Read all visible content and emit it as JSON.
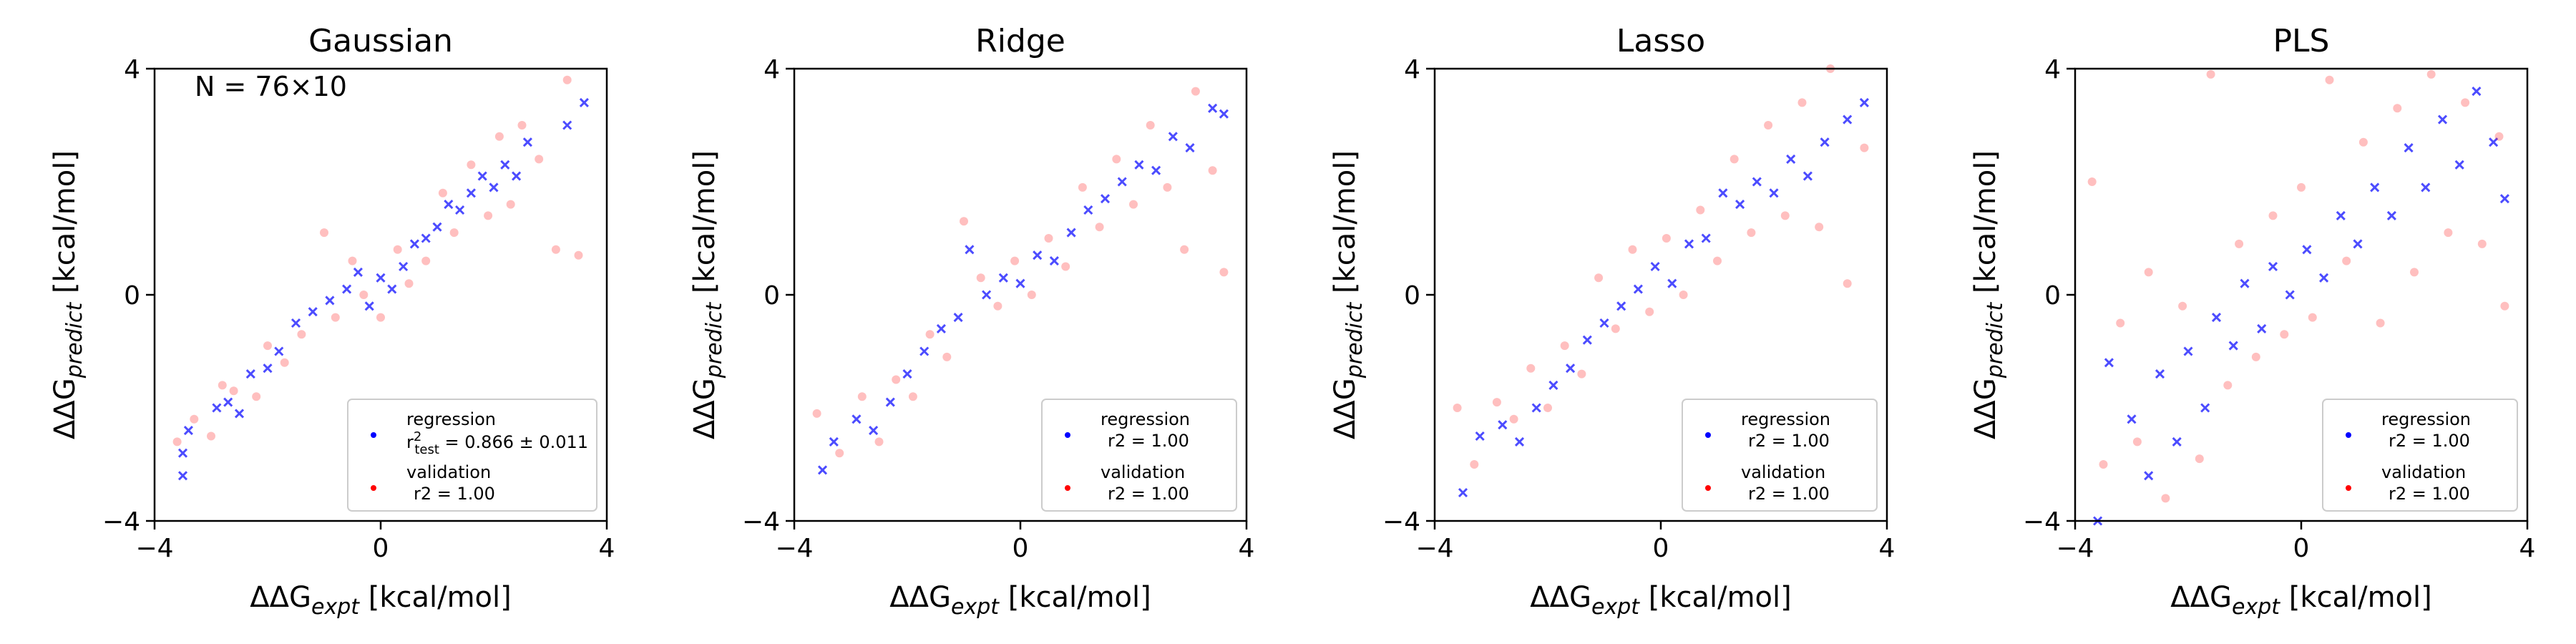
{
  "figure": {
    "axis_tick_labels": [
      "−4",
      "0",
      "4"
    ],
    "xlabel": {
      "prefix": "ΔΔG",
      "sub": "expt",
      "suffix": " [kcal/mol]"
    },
    "ylabel": {
      "prefix": "ΔΔG",
      "sub": "predict",
      "suffix": " [kcal/mol]"
    },
    "colors": {
      "regression": "#0000ff",
      "validation": "#ff0000"
    }
  },
  "chart_data": [
    {
      "type": "scatter",
      "title": "Gaussian",
      "annotation": "N = 76×10",
      "xlim": [
        -4,
        4
      ],
      "ylim": [
        -4,
        4
      ],
      "xticks": [
        -4,
        0,
        4
      ],
      "yticks": [
        -4,
        0,
        4
      ],
      "grid": false,
      "legend_position": "lower-right",
      "legend": [
        {
          "series": "regression",
          "label": "regression",
          "stat_prefix": "r",
          "stat_sup": "2",
          "stat_sub": "test",
          "stat_value": " = 0.866 ± 0.011"
        },
        {
          "series": "validation",
          "label": "validation",
          "stat": "r2 = 1.00"
        }
      ],
      "series": [
        {
          "name": "regression",
          "marker": "x",
          "color": "#0000ff",
          "points": [
            [
              -3.5,
              -3.2
            ],
            [
              -3.5,
              -2.8
            ],
            [
              -3.4,
              -2.4
            ],
            [
              -2.9,
              -2.0
            ],
            [
              -2.7,
              -1.9
            ],
            [
              -2.5,
              -2.1
            ],
            [
              -2.3,
              -1.4
            ],
            [
              -2.0,
              -1.3
            ],
            [
              -1.8,
              -1.0
            ],
            [
              -1.5,
              -0.5
            ],
            [
              -1.2,
              -0.3
            ],
            [
              -0.9,
              -0.1
            ],
            [
              -0.6,
              0.1
            ],
            [
              -0.4,
              0.4
            ],
            [
              -0.2,
              -0.2
            ],
            [
              0.0,
              0.3
            ],
            [
              0.2,
              0.1
            ],
            [
              0.4,
              0.5
            ],
            [
              0.6,
              0.9
            ],
            [
              0.8,
              1.0
            ],
            [
              1.0,
              1.2
            ],
            [
              1.2,
              1.6
            ],
            [
              1.4,
              1.5
            ],
            [
              1.6,
              1.8
            ],
            [
              1.8,
              2.1
            ],
            [
              2.0,
              1.9
            ],
            [
              2.2,
              2.3
            ],
            [
              2.4,
              2.1
            ],
            [
              2.6,
              2.7
            ],
            [
              3.3,
              3.0
            ],
            [
              3.6,
              3.4
            ]
          ]
        },
        {
          "name": "validation",
          "marker": "dot",
          "color": "#ff0000",
          "points": [
            [
              -3.6,
              -2.6
            ],
            [
              -3.3,
              -2.2
            ],
            [
              -3.0,
              -2.5
            ],
            [
              -2.8,
              -1.6
            ],
            [
              -2.6,
              -1.7
            ],
            [
              -2.2,
              -1.8
            ],
            [
              -2.0,
              -0.9
            ],
            [
              -1.7,
              -1.2
            ],
            [
              -1.4,
              -0.7
            ],
            [
              -1.0,
              1.1
            ],
            [
              -0.8,
              -0.4
            ],
            [
              -0.5,
              0.6
            ],
            [
              -0.3,
              0.0
            ],
            [
              0.0,
              -0.4
            ],
            [
              0.3,
              0.8
            ],
            [
              0.5,
              0.2
            ],
            [
              0.8,
              0.6
            ],
            [
              1.1,
              1.8
            ],
            [
              1.3,
              1.1
            ],
            [
              1.6,
              2.3
            ],
            [
              1.9,
              1.4
            ],
            [
              2.1,
              2.8
            ],
            [
              2.3,
              1.6
            ],
            [
              2.5,
              3.0
            ],
            [
              2.8,
              2.4
            ],
            [
              3.1,
              0.8
            ],
            [
              3.3,
              3.8
            ],
            [
              3.5,
              0.7
            ]
          ]
        }
      ]
    },
    {
      "type": "scatter",
      "title": "Ridge",
      "xlim": [
        -4,
        4
      ],
      "ylim": [
        -4,
        4
      ],
      "xticks": [
        -4,
        0,
        4
      ],
      "yticks": [
        -4,
        0,
        4
      ],
      "grid": false,
      "legend_position": "lower-right",
      "legend": [
        {
          "series": "regression",
          "label": "regression",
          "stat": "r2 = 1.00"
        },
        {
          "series": "validation",
          "label": "validation",
          "stat": "r2 = 1.00"
        }
      ],
      "series": [
        {
          "name": "regression",
          "marker": "x",
          "color": "#0000ff",
          "points": [
            [
              -3.5,
              -3.1
            ],
            [
              -3.3,
              -2.6
            ],
            [
              -2.9,
              -2.2
            ],
            [
              -2.6,
              -2.4
            ],
            [
              -2.3,
              -1.9
            ],
            [
              -2.0,
              -1.4
            ],
            [
              -1.7,
              -1.0
            ],
            [
              -1.4,
              -0.6
            ],
            [
              -1.1,
              -0.4
            ],
            [
              -0.9,
              0.8
            ],
            [
              -0.6,
              0.0
            ],
            [
              -0.3,
              0.3
            ],
            [
              0.0,
              0.2
            ],
            [
              0.3,
              0.7
            ],
            [
              0.6,
              0.6
            ],
            [
              0.9,
              1.1
            ],
            [
              1.2,
              1.5
            ],
            [
              1.5,
              1.7
            ],
            [
              1.8,
              2.0
            ],
            [
              2.1,
              2.3
            ],
            [
              2.4,
              2.2
            ],
            [
              2.7,
              2.8
            ],
            [
              3.0,
              2.6
            ],
            [
              3.4,
              3.3
            ],
            [
              3.6,
              3.2
            ]
          ]
        },
        {
          "name": "validation",
          "marker": "dot",
          "color": "#ff0000",
          "points": [
            [
              -3.6,
              -2.1
            ],
            [
              -3.2,
              -2.8
            ],
            [
              -2.8,
              -1.8
            ],
            [
              -2.5,
              -2.6
            ],
            [
              -2.2,
              -1.5
            ],
            [
              -1.9,
              -1.8
            ],
            [
              -1.6,
              -0.7
            ],
            [
              -1.3,
              -1.1
            ],
            [
              -1.0,
              1.3
            ],
            [
              -0.7,
              0.3
            ],
            [
              -0.4,
              -0.2
            ],
            [
              -0.1,
              0.6
            ],
            [
              0.2,
              0.0
            ],
            [
              0.5,
              1.0
            ],
            [
              0.8,
              0.5
            ],
            [
              1.1,
              1.9
            ],
            [
              1.4,
              1.2
            ],
            [
              1.7,
              2.4
            ],
            [
              2.0,
              1.6
            ],
            [
              2.3,
              3.0
            ],
            [
              2.6,
              1.9
            ],
            [
              2.9,
              0.8
            ],
            [
              3.1,
              3.6
            ],
            [
              3.4,
              2.2
            ],
            [
              3.6,
              0.4
            ]
          ]
        }
      ]
    },
    {
      "type": "scatter",
      "title": "Lasso",
      "xlim": [
        -4,
        4
      ],
      "ylim": [
        -4,
        4
      ],
      "xticks": [
        -4,
        0,
        4
      ],
      "yticks": [
        -4,
        0,
        4
      ],
      "grid": false,
      "legend_position": "lower-right",
      "legend": [
        {
          "series": "regression",
          "label": "regression",
          "stat": "r2 = 1.00"
        },
        {
          "series": "validation",
          "label": "validation",
          "stat": "r2 = 1.00"
        }
      ],
      "series": [
        {
          "name": "regression",
          "marker": "x",
          "color": "#0000ff",
          "points": [
            [
              -3.5,
              -3.5
            ],
            [
              -3.2,
              -2.5
            ],
            [
              -2.8,
              -2.3
            ],
            [
              -2.5,
              -2.6
            ],
            [
              -2.2,
              -2.0
            ],
            [
              -1.9,
              -1.6
            ],
            [
              -1.6,
              -1.3
            ],
            [
              -1.3,
              -0.8
            ],
            [
              -1.0,
              -0.5
            ],
            [
              -0.7,
              -0.2
            ],
            [
              -0.4,
              0.1
            ],
            [
              -0.1,
              0.5
            ],
            [
              0.2,
              0.2
            ],
            [
              0.5,
              0.9
            ],
            [
              0.8,
              1.0
            ],
            [
              1.1,
              1.8
            ],
            [
              1.4,
              1.6
            ],
            [
              1.7,
              2.0
            ],
            [
              2.0,
              1.8
            ],
            [
              2.3,
              2.4
            ],
            [
              2.6,
              2.1
            ],
            [
              2.9,
              2.7
            ],
            [
              3.3,
              3.1
            ],
            [
              3.6,
              3.4
            ]
          ]
        },
        {
          "name": "validation",
          "marker": "dot",
          "color": "#ff0000",
          "points": [
            [
              -3.6,
              -2.0
            ],
            [
              -3.3,
              -3.0
            ],
            [
              -2.9,
              -1.9
            ],
            [
              -2.6,
              -2.2
            ],
            [
              -2.3,
              -1.3
            ],
            [
              -2.0,
              -2.0
            ],
            [
              -1.7,
              -0.9
            ],
            [
              -1.4,
              -1.4
            ],
            [
              -1.1,
              0.3
            ],
            [
              -0.8,
              -0.6
            ],
            [
              -0.5,
              0.8
            ],
            [
              -0.2,
              -0.3
            ],
            [
              0.1,
              1.0
            ],
            [
              0.4,
              0.0
            ],
            [
              0.7,
              1.5
            ],
            [
              1.0,
              0.6
            ],
            [
              1.3,
              2.4
            ],
            [
              1.6,
              1.1
            ],
            [
              1.9,
              3.0
            ],
            [
              2.2,
              1.4
            ],
            [
              2.5,
              3.4
            ],
            [
              2.8,
              1.2
            ],
            [
              3.0,
              4.0
            ],
            [
              3.3,
              0.2
            ],
            [
              3.6,
              2.6
            ]
          ]
        }
      ]
    },
    {
      "type": "scatter",
      "title": "PLS",
      "xlim": [
        -4,
        4
      ],
      "ylim": [
        -4,
        4
      ],
      "xticks": [
        -4,
        0,
        4
      ],
      "yticks": [
        -4,
        0,
        4
      ],
      "grid": false,
      "legend_position": "lower-right",
      "legend": [
        {
          "series": "regression",
          "label": "regression",
          "stat": "r2 = 1.00"
        },
        {
          "series": "validation",
          "label": "validation",
          "stat": "r2 = 1.00"
        }
      ],
      "series": [
        {
          "name": "regression",
          "marker": "x",
          "color": "#0000ff",
          "points": [
            [
              -3.6,
              -4.0
            ],
            [
              -3.4,
              -1.2
            ],
            [
              -3.0,
              -2.2
            ],
            [
              -2.7,
              -3.2
            ],
            [
              -2.5,
              -1.4
            ],
            [
              -2.2,
              -2.6
            ],
            [
              -2.0,
              -1.0
            ],
            [
              -1.7,
              -2.0
            ],
            [
              -1.5,
              -0.4
            ],
            [
              -1.2,
              -0.9
            ],
            [
              -1.0,
              0.2
            ],
            [
              -0.7,
              -0.6
            ],
            [
              -0.5,
              0.5
            ],
            [
              -0.2,
              0.0
            ],
            [
              0.1,
              0.8
            ],
            [
              0.4,
              0.3
            ],
            [
              0.7,
              1.4
            ],
            [
              1.0,
              0.9
            ],
            [
              1.3,
              1.9
            ],
            [
              1.6,
              1.4
            ],
            [
              1.9,
              2.6
            ],
            [
              2.2,
              1.9
            ],
            [
              2.5,
              3.1
            ],
            [
              2.8,
              2.3
            ],
            [
              3.1,
              3.6
            ],
            [
              3.4,
              2.7
            ],
            [
              3.6,
              1.7
            ]
          ]
        },
        {
          "name": "validation",
          "marker": "dot",
          "color": "#ff0000",
          "points": [
            [
              -3.7,
              2.0
            ],
            [
              -3.5,
              -3.0
            ],
            [
              -3.2,
              -0.5
            ],
            [
              -2.9,
              -2.6
            ],
            [
              -2.7,
              0.4
            ],
            [
              -2.4,
              -3.6
            ],
            [
              -2.1,
              -0.2
            ],
            [
              -1.8,
              -2.9
            ],
            [
              -1.6,
              3.9
            ],
            [
              -1.3,
              -1.6
            ],
            [
              -1.1,
              0.9
            ],
            [
              -0.8,
              -1.1
            ],
            [
              -0.5,
              1.4
            ],
            [
              -0.3,
              -0.7
            ],
            [
              0.0,
              1.9
            ],
            [
              0.2,
              -0.4
            ],
            [
              0.5,
              3.8
            ],
            [
              0.8,
              0.6
            ],
            [
              1.1,
              2.7
            ],
            [
              1.4,
              -0.5
            ],
            [
              1.7,
              3.3
            ],
            [
              2.0,
              0.4
            ],
            [
              2.3,
              3.9
            ],
            [
              2.6,
              1.1
            ],
            [
              2.9,
              3.4
            ],
            [
              3.2,
              0.9
            ],
            [
              3.5,
              2.8
            ],
            [
              3.6,
              -0.2
            ]
          ]
        }
      ]
    }
  ]
}
